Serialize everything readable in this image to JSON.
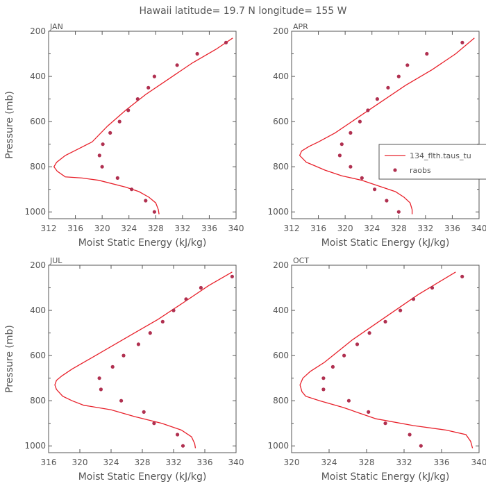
{
  "figure_title": "Hawaii  latitude= 19.7 N longitude= 155 W",
  "legend": {
    "model_label": "134_flth.taus_tu",
    "obs_label": "raobs"
  },
  "colors": {
    "model": "#e8202a",
    "obs": "#b03050",
    "axis": "#555555",
    "text": "#555555",
    "background": "#ffffff"
  },
  "chart_data": [
    {
      "type": "line",
      "panel": "JAN",
      "title": "JAN",
      "xlabel": "Moist Static Energy (kJ/kg)",
      "ylabel": "Pressure (mb)",
      "xlim": [
        312,
        340
      ],
      "ylim": [
        200,
        1030
      ],
      "y_inverted": true,
      "xticks": [
        312,
        316,
        320,
        324,
        328,
        332,
        336,
        340
      ],
      "yticks": [
        200,
        400,
        600,
        800,
        1000
      ],
      "series": [
        {
          "name": "134_flth.taus_tu",
          "style": "line",
          "x": [
            328.5,
            328.4,
            328.0,
            327.0,
            325.5,
            323.5,
            319.5,
            317.0,
            314.5,
            313.3,
            312.8,
            313.2,
            314.5,
            316.5,
            318.5,
            320.8,
            323.5,
            326.5,
            330.0,
            333.5,
            337.0,
            339.5
          ],
          "y": [
            1010,
            990,
            960,
            935,
            910,
            890,
            860,
            850,
            845,
            820,
            800,
            780,
            750,
            720,
            690,
            620,
            550,
            480,
            410,
            340,
            280,
            230
          ]
        },
        {
          "name": "raobs",
          "style": "markers",
          "x": [
            327.8,
            326.5,
            324.4,
            322.3,
            320.0,
            319.6,
            320.1,
            321.2,
            322.6,
            323.9,
            325.3,
            326.9,
            327.8,
            331.2,
            334.2,
            338.5
          ],
          "y": [
            1000,
            950,
            900,
            850,
            800,
            750,
            700,
            650,
            600,
            550,
            500,
            450,
            400,
            350,
            300,
            250
          ]
        }
      ]
    },
    {
      "type": "line",
      "panel": "APR",
      "title": "APR",
      "xlabel": "Moist Static Energy (kJ/kg)",
      "ylabel": "",
      "xlim": [
        312,
        340
      ],
      "ylim": [
        200,
        1030
      ],
      "y_inverted": true,
      "xticks": [
        312,
        316,
        320,
        324,
        328,
        332,
        336,
        340
      ],
      "yticks": [
        200,
        400,
        600,
        800,
        1000
      ],
      "series": [
        {
          "name": "134_flth.taus_tu",
          "style": "line",
          "x": [
            330.0,
            330.0,
            329.7,
            328.8,
            327.5,
            325.5,
            322.5,
            319.5,
            317.0,
            315.0,
            314.2,
            313.2,
            313.5,
            314.6,
            316.0,
            318.5,
            322.0,
            325.5,
            329.0,
            333.0,
            336.5,
            339.3
          ],
          "y": [
            1010,
            990,
            960,
            935,
            910,
            890,
            860,
            840,
            815,
            790,
            780,
            750,
            730,
            710,
            690,
            650,
            580,
            510,
            440,
            370,
            300,
            230
          ]
        },
        {
          "name": "raobs",
          "style": "markers",
          "x": [
            328.0,
            326.2,
            324.4,
            322.5,
            320.8,
            319.2,
            319.5,
            320.8,
            322.2,
            323.4,
            324.8,
            326.4,
            328.0,
            329.3,
            332.2,
            337.5
          ],
          "y": [
            1000,
            950,
            900,
            850,
            800,
            750,
            700,
            650,
            600,
            550,
            500,
            450,
            400,
            350,
            300,
            250
          ]
        }
      ]
    },
    {
      "type": "line",
      "panel": "JUL",
      "title": "JUL",
      "xlabel": "Moist Static Energy (kJ/kg)",
      "ylabel": "Pressure (mb)",
      "xlim": [
        316,
        340
      ],
      "ylim": [
        200,
        1030
      ],
      "y_inverted": true,
      "xticks": [
        316,
        320,
        324,
        328,
        332,
        336,
        340
      ],
      "yticks": [
        200,
        400,
        600,
        800,
        1000
      ],
      "series": [
        {
          "name": "134_flth.taus_tu",
          "style": "line",
          "x": [
            334.8,
            334.7,
            334.3,
            333.0,
            330.5,
            327.0,
            324.0,
            320.5,
            319.0,
            317.8,
            317.0,
            316.8,
            317.0,
            317.7,
            319.0,
            322.5,
            326.5,
            330.0,
            333.5,
            336.5,
            339.5
          ],
          "y": [
            1010,
            990,
            960,
            930,
            900,
            870,
            840,
            820,
            800,
            780,
            750,
            730,
            710,
            690,
            660,
            590,
            510,
            440,
            360,
            290,
            230
          ]
        },
        {
          "name": "raobs",
          "style": "markers",
          "x": [
            333.2,
            332.5,
            329.5,
            328.2,
            325.3,
            322.7,
            322.5,
            324.2,
            325.6,
            327.5,
            329.0,
            330.6,
            332.0,
            333.6,
            335.5,
            339.5
          ],
          "y": [
            1000,
            950,
            900,
            850,
            800,
            750,
            700,
            650,
            600,
            550,
            500,
            450,
            400,
            350,
            300,
            250
          ]
        }
      ]
    },
    {
      "type": "line",
      "panel": "OCT",
      "title": "OCT",
      "xlabel": "Moist Static Energy (kJ/kg)",
      "ylabel": "",
      "xlim": [
        320,
        340
      ],
      "ylim": [
        200,
        1030
      ],
      "y_inverted": true,
      "xticks": [
        320,
        324,
        328,
        332,
        336,
        340
      ],
      "yticks": [
        200,
        400,
        600,
        800,
        1000
      ],
      "series": [
        {
          "name": "134_flth.taus_tu",
          "style": "line",
          "x": [
            339.3,
            339.1,
            338.6,
            336.5,
            333.0,
            329.0,
            325.5,
            323.0,
            321.5,
            321.1,
            320.9,
            321.2,
            322.0,
            323.5,
            326.5,
            330.0,
            333.5,
            337.5
          ],
          "y": [
            1010,
            980,
            950,
            930,
            910,
            880,
            830,
            800,
            780,
            760,
            730,
            700,
            670,
            630,
            530,
            430,
            330,
            230
          ]
        },
        {
          "name": "raobs",
          "style": "markers",
          "x": [
            333.8,
            332.6,
            330.0,
            328.2,
            326.1,
            323.4,
            323.4,
            324.4,
            325.6,
            327.0,
            328.3,
            330.0,
            331.6,
            333.0,
            335.0,
            338.2
          ],
          "y": [
            1000,
            950,
            900,
            850,
            800,
            750,
            700,
            650,
            600,
            550,
            500,
            450,
            400,
            350,
            300,
            250
          ]
        }
      ]
    }
  ]
}
